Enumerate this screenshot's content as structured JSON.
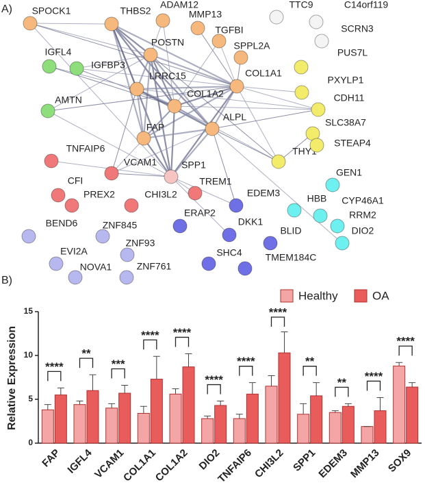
{
  "network": {
    "label": "A)",
    "nodes": [
      {
        "label": "SPOCK1",
        "color": "#f6b87c"
      },
      {
        "label": "THBS2",
        "color": "#f6b87c"
      },
      {
        "label": "ADAM12",
        "color": "#f6b87c"
      },
      {
        "label": "MMP13",
        "color": "#f6b87c"
      },
      {
        "label": "TGFBI",
        "color": "#f6b87c"
      },
      {
        "label": "SPPL2A",
        "color": "#f6b87c"
      },
      {
        "label": "POSTN",
        "color": "#f6b87c"
      },
      {
        "label": "LRRC15",
        "color": "#f6b87c"
      },
      {
        "label": "COL1A1",
        "color": "#f6b87c"
      },
      {
        "label": "COL1A2",
        "color": "#f6b87c"
      },
      {
        "label": "ALPL",
        "color": "#f6b87c"
      },
      {
        "label": "FAP",
        "color": "#f6b87c"
      },
      {
        "label": "IGFL4",
        "color": "#8fde7c"
      },
      {
        "label": "IGFBP3",
        "color": "#8fde7c"
      },
      {
        "label": "AMTN",
        "color": "#8fde7c"
      },
      {
        "label": "TNFAIP6",
        "color": "#f07878"
      },
      {
        "label": "VCAM1",
        "color": "#f07878"
      },
      {
        "label": "SPP1",
        "color": "#f7c4c4"
      },
      {
        "label": "TREM1",
        "color": "#f07878"
      },
      {
        "label": "CFI",
        "color": "#f07878"
      },
      {
        "label": "PREX2",
        "color": "#f07878"
      },
      {
        "label": "CHI3L2",
        "color": "#f07878"
      },
      {
        "label": "PUS7L",
        "color": "#f2ec6a"
      },
      {
        "label": "PXYLP1",
        "color": "#f2ec6a"
      },
      {
        "label": "CDH11",
        "color": "#f2ec6a"
      },
      {
        "label": "SLC38A7",
        "color": "#f2ec6a"
      },
      {
        "label": "THY1",
        "color": "#f2ec6a"
      },
      {
        "label": "STEAP4",
        "color": "#f2ec6a"
      },
      {
        "label": "TTC9",
        "color": "#f4f4f4"
      },
      {
        "label": "C14orf119",
        "color": "#f4f4f4"
      },
      {
        "label": "SCRN3",
        "color": "#f4f4f4"
      },
      {
        "label": "GEN1",
        "color": "#6ff0f0"
      },
      {
        "label": "HBB",
        "color": "#6ff0f0"
      },
      {
        "label": "CYP46A1",
        "color": "#6ff0f0"
      },
      {
        "label": "RRM2",
        "color": "#6ff0f0"
      },
      {
        "label": "DIO2",
        "color": "#6ff0f0"
      },
      {
        "label": "EDEM3",
        "color": "#6f6fe6"
      },
      {
        "label": "ERAP2",
        "color": "#6f6fe6"
      },
      {
        "label": "DKK1",
        "color": "#6f6fe6"
      },
      {
        "label": "BLID",
        "color": "#6f6fe6"
      },
      {
        "label": "SHC4",
        "color": "#6f6fe6"
      },
      {
        "label": "TMEM184C",
        "color": "#6f6fe6"
      },
      {
        "label": "BEND6",
        "color": "#b8b8f0"
      },
      {
        "label": "ZNF845",
        "color": "#b8b8f0"
      },
      {
        "label": "ZNF93",
        "color": "#b8b8f0"
      },
      {
        "label": "EVI2A",
        "color": "#b8b8f0"
      },
      {
        "label": "NOVA1",
        "color": "#b8b8f0"
      },
      {
        "label": "ZNF761",
        "color": "#b8b8f0"
      }
    ]
  },
  "chart_data": {
    "type": "bar",
    "panel_label": "B)",
    "ylabel": "Relative Expression",
    "categories": [
      "FAP",
      "IGFL4",
      "VCAM1",
      "COL1A1",
      "COL1A2",
      "DIO2",
      "TNFAIP6",
      "CHI3L2",
      "SPP1",
      "EDEM3",
      "MMP13",
      "SOX9"
    ],
    "series": [
      {
        "name": "Healthy",
        "color": "#f4a6a6",
        "values": [
          3.8,
          4.4,
          4.0,
          3.4,
          5.6,
          2.8,
          2.8,
          6.5,
          3.3,
          3.5,
          1.9,
          8.8
        ],
        "errors": [
          0.6,
          0.4,
          0.5,
          0.8,
          0.6,
          0.3,
          0.5,
          1.2,
          1.2,
          0.2,
          0,
          0.4
        ]
      },
      {
        "name": "OA",
        "color": "#e85c5c",
        "values": [
          5.5,
          6.0,
          5.7,
          7.3,
          8.7,
          4.3,
          5.6,
          10.3,
          5.4,
          4.2,
          3.7,
          6.4
        ],
        "errors": [
          0.8,
          1.8,
          0.9,
          2.6,
          1.5,
          0.5,
          1.3,
          2.4,
          1.5,
          0.3,
          1.5,
          0.5
        ]
      }
    ],
    "annotations": [
      "****",
      "**",
      "***",
      "****",
      "****",
      "****",
      "****",
      "****",
      "**",
      "**",
      "****",
      "****"
    ],
    "ylim": [
      0,
      15
    ],
    "yticks": [
      0,
      5,
      10,
      15
    ],
    "legend": "top-right"
  }
}
